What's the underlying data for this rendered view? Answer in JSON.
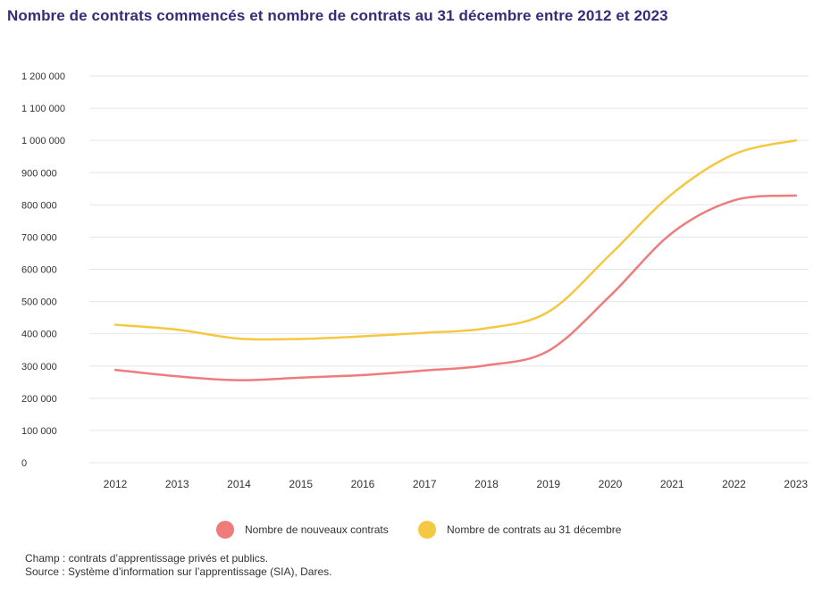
{
  "title": "Nombre de contrats commencés et nombre de contrats au 31 décembre entre 2012 et 2023",
  "notes": {
    "champ": "Champ : contrats d’apprentissage privés et publics.",
    "source": "Source : Système d’information sur l’apprentissage (SIA), Dares."
  },
  "colors": {
    "nouveaux": "#f07b7b",
    "au31": "#f5c842",
    "grid": "#e6e6e6"
  },
  "chart_data": {
    "type": "line",
    "title": "Nombre de contrats commencés et nombre de contrats au 31 décembre entre 2012 et 2023",
    "xlabel": "",
    "ylabel": "",
    "x": [
      "2012",
      "2013",
      "2014",
      "2015",
      "2016",
      "2017",
      "2018",
      "2019",
      "2020",
      "2021",
      "2022",
      "2023"
    ],
    "ylim": [
      0,
      1200000
    ],
    "yticks": [
      0,
      100000,
      200000,
      300000,
      400000,
      500000,
      600000,
      700000,
      800000,
      900000,
      1000000,
      1100000,
      1200000
    ],
    "ytick_labels": [
      "0",
      "100 000",
      "200 000",
      "300 000",
      "400 000",
      "500 000",
      "600 000",
      "700 000",
      "800 000",
      "900 000",
      "1 000 000",
      "1 100 000",
      "1 200 000"
    ],
    "grid": true,
    "legend_position": "bottom",
    "series": [
      {
        "name": "Nombre de nouveaux contrats",
        "color": "#f07b7b",
        "values": [
          288000,
          268000,
          256000,
          264000,
          272000,
          286000,
          302000,
          347000,
          518000,
          713000,
          814000,
          829000
        ]
      },
      {
        "name": "Nombre de contrats au 31 décembre",
        "color": "#f5c842",
        "values": [
          428000,
          413000,
          385000,
          384000,
          392000,
          403000,
          417000,
          468000,
          646000,
          834000,
          957000,
          1000000
        ]
      }
    ]
  }
}
